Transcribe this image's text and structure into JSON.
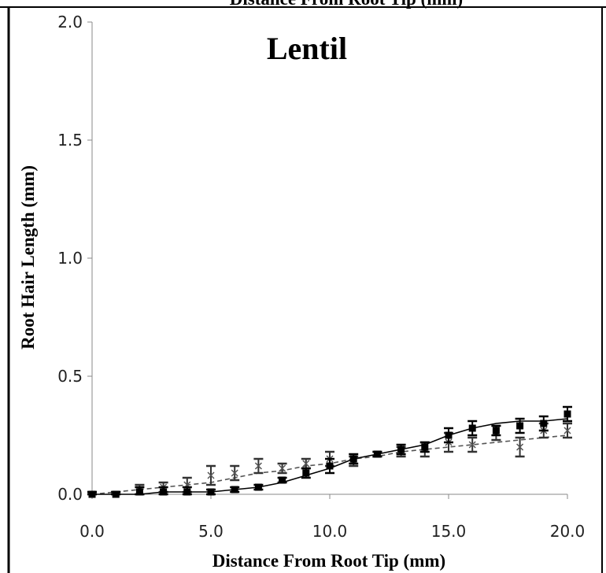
{
  "prev_panel": {
    "xlabel_fragment": "Distance From Root Tip (mm)"
  },
  "chart_data": {
    "type": "line",
    "title": "Lentil",
    "xlabel": "Distance From Root Tip (mm)",
    "ylabel": "Root Hair Length (mm)",
    "xlim": [
      0,
      20
    ],
    "ylim": [
      0,
      2
    ],
    "xticks": [
      "0.0",
      "5.0",
      "10.0",
      "15.0",
      "20.0"
    ],
    "yticks": [
      "0.0",
      "0.5",
      "1.0",
      "1.5",
      "2.0"
    ],
    "grid": false,
    "legend": "none",
    "series": [
      {
        "marker": "square",
        "line": "solid",
        "color": "#000000",
        "x": [
          0,
          1,
          2,
          3,
          4,
          5,
          6,
          7,
          8,
          9,
          10,
          11,
          12,
          13,
          14,
          15,
          16,
          17,
          18,
          19,
          20
        ],
        "y": [
          0.0,
          0.0,
          0.01,
          0.01,
          0.01,
          0.01,
          0.02,
          0.03,
          0.06,
          0.09,
          0.12,
          0.15,
          0.17,
          0.19,
          0.2,
          0.25,
          0.28,
          0.27,
          0.29,
          0.3,
          0.34
        ],
        "err": [
          0.01,
          0.01,
          0.02,
          0.02,
          0.02,
          0.01,
          0.01,
          0.01,
          0.01,
          0.02,
          0.03,
          0.02,
          0.01,
          0.02,
          0.02,
          0.03,
          0.03,
          0.02,
          0.03,
          0.03,
          0.03
        ],
        "trend": [
          0.0,
          0.0,
          0.0,
          0.01,
          0.01,
          0.01,
          0.02,
          0.03,
          0.05,
          0.08,
          0.11,
          0.15,
          0.17,
          0.19,
          0.21,
          0.25,
          0.28,
          0.3,
          0.31,
          0.31,
          0.32
        ]
      },
      {
        "marker": "x",
        "line": "dashed",
        "color": "#555555",
        "x": [
          0,
          1,
          2,
          3,
          4,
          5,
          6,
          7,
          8,
          9,
          10,
          11,
          12,
          13,
          14,
          15,
          16,
          17,
          18,
          19,
          20
        ],
        "y": [
          0.0,
          0.0,
          0.02,
          0.03,
          0.04,
          0.08,
          0.09,
          0.12,
          0.11,
          0.13,
          0.15,
          0.14,
          0.17,
          0.18,
          0.19,
          0.22,
          0.21,
          0.26,
          0.2,
          0.27,
          0.27
        ],
        "err": [
          0.01,
          0.01,
          0.02,
          0.02,
          0.03,
          0.04,
          0.03,
          0.03,
          0.02,
          0.02,
          0.03,
          0.02,
          0.01,
          0.02,
          0.03,
          0.04,
          0.03,
          0.03,
          0.04,
          0.03,
          0.03
        ],
        "trend": [
          0.0,
          0.01,
          0.02,
          0.03,
          0.04,
          0.05,
          0.07,
          0.09,
          0.1,
          0.12,
          0.13,
          0.15,
          0.16,
          0.18,
          0.19,
          0.2,
          0.21,
          0.22,
          0.23,
          0.24,
          0.25
        ]
      }
    ]
  }
}
